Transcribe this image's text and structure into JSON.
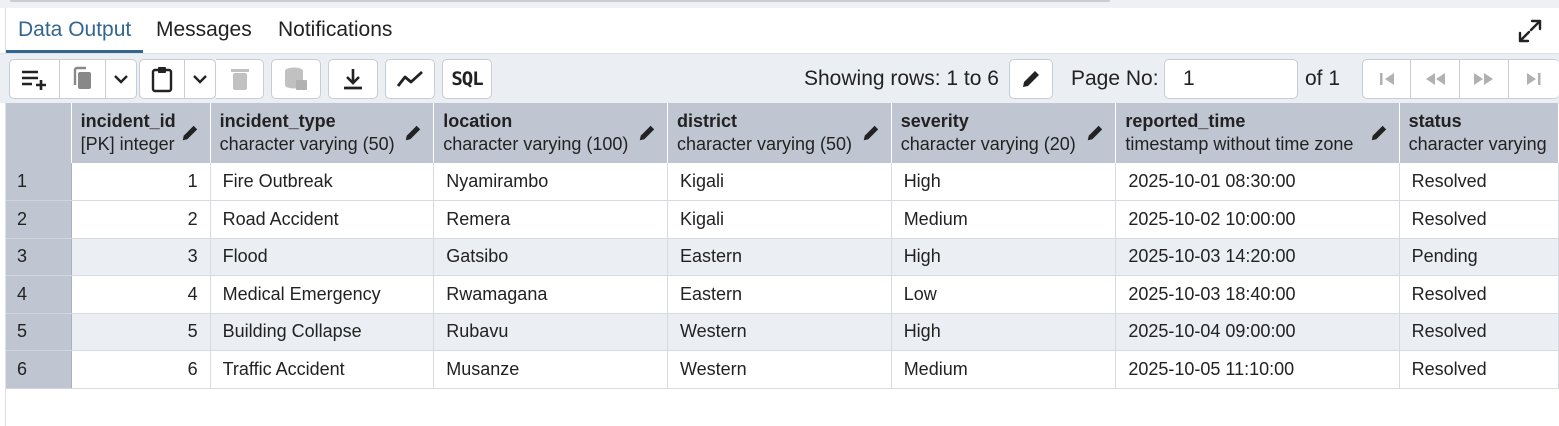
{
  "tabs": [
    {
      "label": "Data Output",
      "active": true
    },
    {
      "label": "Messages",
      "active": false
    },
    {
      "label": "Notifications",
      "active": false
    }
  ],
  "toolbar": {
    "icons": [
      "add-row-icon",
      "copy-icon",
      "chevron-down-icon",
      "paste-icon",
      "chevron-down-icon",
      "delete-icon",
      "save-data-icon",
      "download-icon",
      "graph-icon",
      "sql-icon"
    ],
    "sql_label": "SQL",
    "rows_info": "Showing rows: 1 to 6",
    "page_label": "Page No:",
    "page_value": "1",
    "page_of": "of 1"
  },
  "columns": [
    {
      "name": "incident_id",
      "type": "[PK] integer"
    },
    {
      "name": "incident_type",
      "type": "character varying (50)"
    },
    {
      "name": "location",
      "type": "character varying (100)"
    },
    {
      "name": "district",
      "type": "character varying (50)"
    },
    {
      "name": "severity",
      "type": "character varying (20)"
    },
    {
      "name": "reported_time",
      "type": "timestamp without time zone"
    },
    {
      "name": "status",
      "type": "character varying"
    }
  ],
  "rows": [
    {
      "n": "1",
      "cells": [
        "1",
        "Fire Outbreak",
        "Nyamirambo",
        "Kigali",
        "High",
        "2025-10-01 08:30:00",
        "Resolved"
      ]
    },
    {
      "n": "2",
      "cells": [
        "2",
        "Road Accident",
        "Remera",
        "Kigali",
        "Medium",
        "2025-10-02 10:00:00",
        "Resolved"
      ]
    },
    {
      "n": "3",
      "cells": [
        "3",
        "Flood",
        "Gatsibo",
        "Eastern",
        "High",
        "2025-10-03 14:20:00",
        "Pending"
      ]
    },
    {
      "n": "4",
      "cells": [
        "4",
        "Medical Emergency",
        "Rwamagana",
        "Eastern",
        "Low",
        "2025-10-03 18:40:00",
        "Resolved"
      ]
    },
    {
      "n": "5",
      "cells": [
        "5",
        "Building Collapse",
        "Rubavu",
        "Western",
        "High",
        "2025-10-04 09:00:00",
        "Resolved"
      ]
    },
    {
      "n": "6",
      "cells": [
        "6",
        "Traffic Accident",
        "Musanze",
        "Western",
        "Medium",
        "2025-10-05 11:10:00",
        "Resolved"
      ]
    }
  ],
  "colors": {
    "accent": "#326690",
    "header_bg": "#bfc5d1",
    "alt_row": "#ebeef3"
  }
}
